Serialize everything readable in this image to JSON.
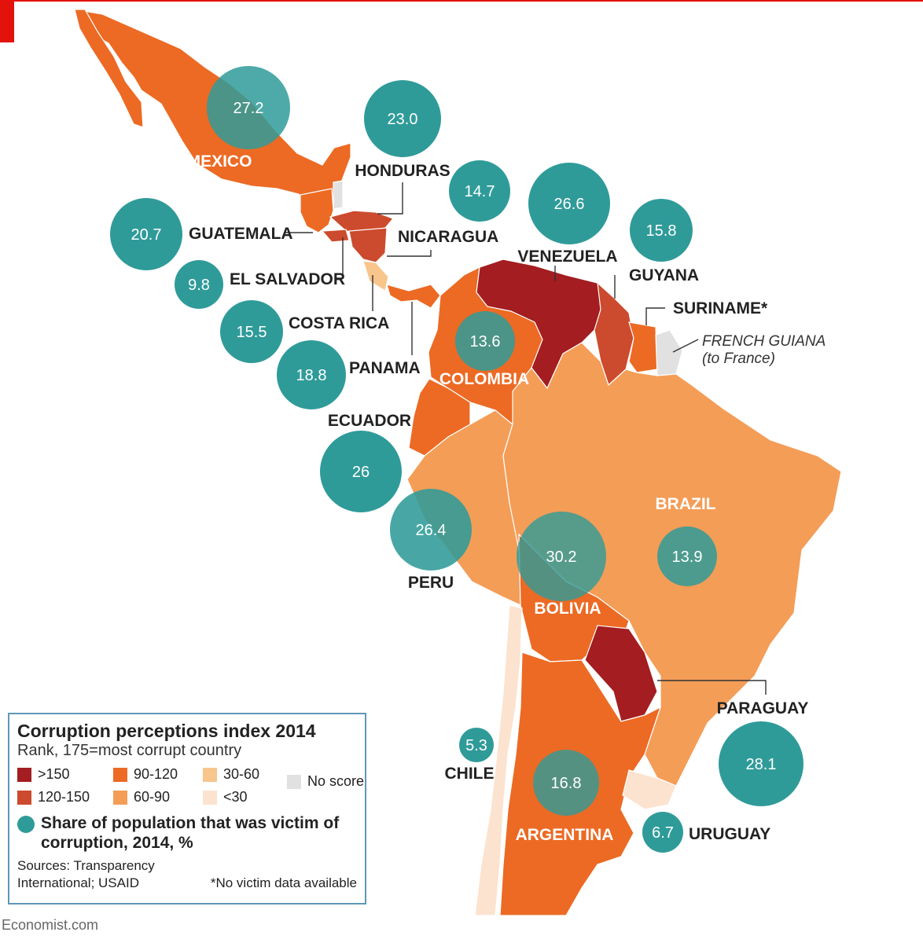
{
  "legend": {
    "title": "Corruption perceptions index 2014",
    "subtitle": "Rank, 175=most corrupt country",
    "categories": [
      {
        "label": ">150",
        "color": "#a31d21"
      },
      {
        "label": "90-120",
        "color": "#ec6a24"
      },
      {
        "label": "30-60",
        "color": "#f8c58d"
      },
      {
        "label": "No score",
        "color": "#e1e1e1"
      },
      {
        "label": "120-150",
        "color": "#cc4a2d"
      },
      {
        "label": "60-90",
        "color": "#f49d57"
      },
      {
        "label": "<30",
        "color": "#fce3cf"
      }
    ],
    "bubble_label": "Share of population that was victim of corruption, 2014, %",
    "bubble_color": "#2f9b99",
    "sources": "Sources: Transparency International; USAID",
    "footnote": "*No victim data available"
  },
  "countries": {
    "mexico": {
      "name": "MEXICO",
      "value": "27.2"
    },
    "honduras": {
      "name": "HONDURAS",
      "value": "23.0"
    },
    "guatemala": {
      "name": "GUATEMALA",
      "value": "20.7"
    },
    "nicaragua": {
      "name": "NICARAGUA",
      "value": "14.7"
    },
    "el_salvador": {
      "name": "EL SALVADOR",
      "value": "9.8"
    },
    "costa_rica": {
      "name": "COSTA RICA",
      "value": "15.5"
    },
    "panama": {
      "name": "PANAMA",
      "value": "18.8"
    },
    "venezuela": {
      "name": "VENEZUELA",
      "value": "26.6"
    },
    "guyana": {
      "name": "GUYANA",
      "value": "15.8"
    },
    "suriname": {
      "name": "SURINAME*"
    },
    "french_guiana": {
      "name": "FRENCH GUIANA",
      "note": "(to France)"
    },
    "colombia": {
      "name": "COLOMBIA",
      "value": "13.6"
    },
    "ecuador": {
      "name": "ECUADOR",
      "value": "26"
    },
    "peru": {
      "name": "PERU",
      "value": "26.4"
    },
    "brazil": {
      "name": "BRAZIL",
      "value": "13.9"
    },
    "bolivia": {
      "name": "BOLIVIA",
      "value": "30.2"
    },
    "paraguay": {
      "name": "PARAGUAY",
      "value": "28.1"
    },
    "chile": {
      "name": "CHILE",
      "value": "5.3"
    },
    "argentina": {
      "name": "ARGENTINA",
      "value": "16.8"
    },
    "uruguay": {
      "name": "URUGUAY",
      "value": "6.7"
    }
  },
  "brand": "Economist.com"
}
